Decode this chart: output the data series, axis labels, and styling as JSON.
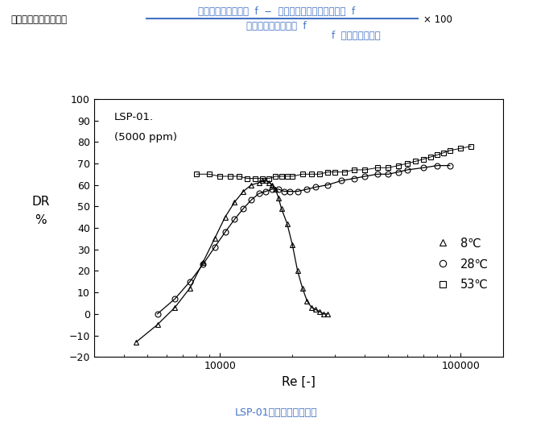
{
  "title_formula_left": "抗力減少率（ＤＲ％）",
  "title_formula_numerator": "水のみを流した時の  f  −  界面活性剤を添加した時の  f",
  "title_formula_denominator": "水のみを流した時の  f",
  "title_formula_right": "× 100",
  "title_formula_note": "f  は流体摩擦係数",
  "subtitle": "LSP-01の抗力減少グラフ",
  "xlabel": "Re [-]",
  "ylabel_top": "DR",
  "ylabel_bot": "%",
  "annotation_line1": "LSP-01.",
  "annotation_line2": "(5000 ppm)",
  "legend_8": "8℃",
  "legend_28": "28℃",
  "legend_53": "53℃",
  "xlim_log": [
    3000,
    150000
  ],
  "ylim": [
    -20,
    100
  ],
  "yticks": [
    -20,
    -10,
    0,
    10,
    20,
    30,
    40,
    50,
    60,
    70,
    80,
    90,
    100
  ],
  "color_8": "#000000",
  "color_28": "#000000",
  "color_53": "#000000",
  "header_color": "#4472c4",
  "subtitle_color": "#4472c4",
  "data_8_Re": [
    4500,
    5500,
    6500,
    7500,
    8500,
    9500,
    10500,
    11500,
    12500,
    13500,
    14500,
    15000,
    15500,
    16000,
    16500,
    17000,
    17500,
    18000,
    19000,
    20000,
    21000,
    22000,
    23000,
    24000,
    25000,
    26000,
    27000,
    28000
  ],
  "data_8_DR": [
    -13,
    -5,
    3,
    12,
    24,
    35,
    45,
    52,
    57,
    60,
    61,
    62,
    62,
    61,
    60,
    58,
    54,
    49,
    42,
    32,
    20,
    12,
    6,
    3,
    2,
    1,
    0,
    0
  ],
  "data_28_Re": [
    5500,
    6500,
    7500,
    8500,
    9500,
    10500,
    11500,
    12500,
    13500,
    14500,
    15500,
    16500,
    17500,
    18500,
    19500,
    21000,
    23000,
    25000,
    28000,
    32000,
    36000,
    40000,
    45000,
    50000,
    55000,
    60000,
    70000,
    80000,
    90000
  ],
  "data_28_DR": [
    0,
    7,
    15,
    23,
    31,
    38,
    44,
    49,
    53,
    56,
    57,
    58,
    58,
    57,
    57,
    57,
    58,
    59,
    60,
    62,
    63,
    64,
    65,
    65,
    66,
    67,
    68,
    69,
    69
  ],
  "data_53_Re": [
    8000,
    9000,
    10000,
    11000,
    12000,
    13000,
    14000,
    15000,
    16000,
    17000,
    18000,
    19000,
    20000,
    22000,
    24000,
    26000,
    28000,
    30000,
    33000,
    36000,
    40000,
    45000,
    50000,
    55000,
    60000,
    65000,
    70000,
    75000,
    80000,
    85000,
    90000,
    100000,
    110000
  ],
  "data_53_DR": [
    65,
    65,
    64,
    64,
    64,
    63,
    63,
    63,
    63,
    64,
    64,
    64,
    64,
    65,
    65,
    65,
    66,
    66,
    66,
    67,
    67,
    68,
    68,
    69,
    70,
    71,
    72,
    73,
    74,
    75,
    76,
    77,
    78
  ]
}
